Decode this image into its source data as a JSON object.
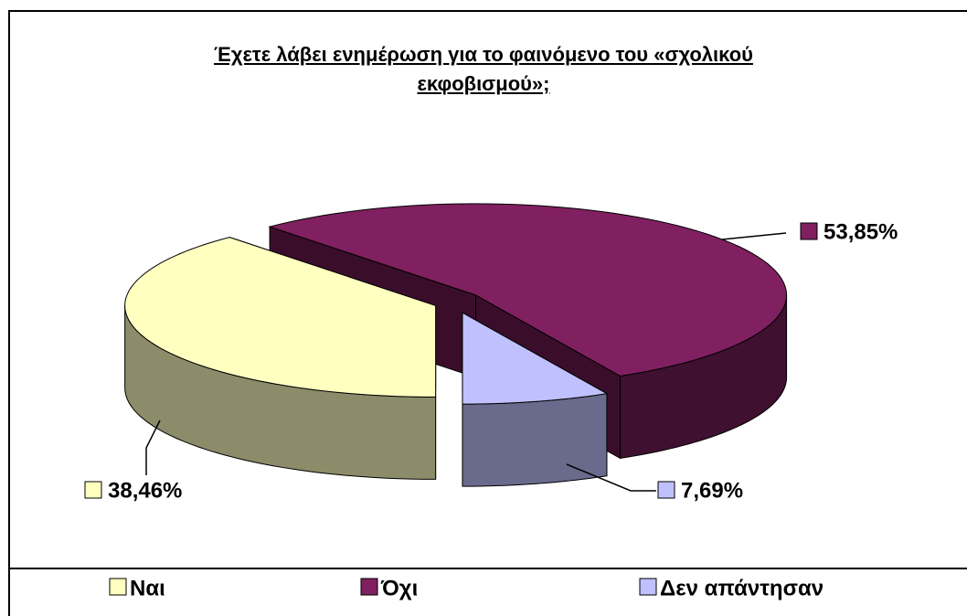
{
  "chart_data": {
    "type": "pie",
    "title": "Έχετε λάβει ενημέρωση για το φαινόμενο του «σχολικού εκφοβισμού»;",
    "categories": [
      "Ναι",
      "Όχι",
      "Δεν απάντησαν"
    ],
    "values": [
      38.46,
      53.85,
      7.69
    ],
    "value_labels": [
      "38,46%",
      "53,85%",
      "7,69%"
    ],
    "colors": [
      "#ffffc0",
      "#802060",
      "#c0c0ff"
    ],
    "legend": "bottom"
  }
}
